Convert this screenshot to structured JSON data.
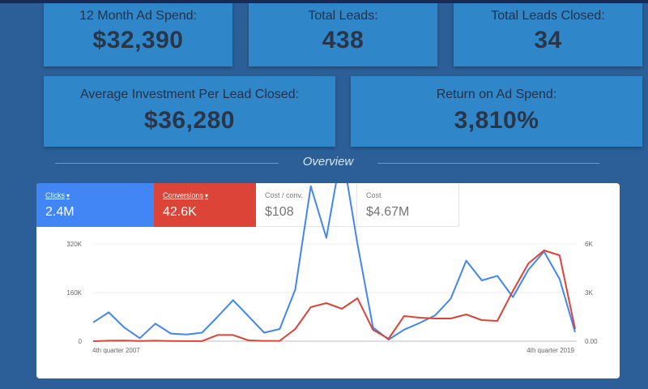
{
  "kpis": {
    "spend": {
      "label": "12 Month Ad Spend:",
      "value": "$32,390"
    },
    "leads": {
      "label": "Total Leads:",
      "value": "438"
    },
    "closed": {
      "label": "Total Leads Closed:",
      "value": "34"
    },
    "avg": {
      "label": "Average Investment Per Lead Closed:",
      "value": "$36,280"
    },
    "roas": {
      "label": "Return on Ad Spend:",
      "value": "3,810%"
    }
  },
  "overview_label": "Overview",
  "tabs": [
    {
      "label": "Clicks",
      "value": "2.4M",
      "color": "#4285f4",
      "dropdown": true
    },
    {
      "label": "Conversions",
      "value": "42.6K",
      "color": "#db4437",
      "dropdown": true
    },
    {
      "label": "Cost / conv.",
      "value": "$108"
    },
    {
      "label": "Cost",
      "value": "$4.67M"
    }
  ],
  "caret_glyph": "▾",
  "chart_data": {
    "type": "line",
    "x_labels": [
      "4th quarter 2007",
      "4th quarter 2019"
    ],
    "left_axis": {
      "ticks": [
        "320K",
        "160K",
        "0"
      ],
      "ylim": [
        0,
        320000
      ]
    },
    "right_axis": {
      "ticks": [
        "6K",
        "3K",
        "0.00"
      ],
      "ylim": [
        0,
        6000
      ]
    },
    "grid": true,
    "series": [
      {
        "name": "Clicks",
        "axis": "left",
        "color": "#4285f4",
        "values": [
          62000,
          95000,
          45000,
          10000,
          58000,
          25000,
          22000,
          28000,
          80000,
          135000,
          82000,
          28000,
          40000,
          170000,
          510000,
          340000,
          630000,
          320000,
          45000,
          5000,
          38000,
          60000,
          85000,
          140000,
          265000,
          200000,
          215000,
          145000,
          235000,
          295000,
          205000,
          30000
        ]
      },
      {
        "name": "Conversions",
        "axis": "right",
        "color": "#db4437",
        "values": [
          0,
          30,
          40,
          10,
          30,
          10,
          5,
          5,
          380,
          380,
          50,
          20,
          20,
          750,
          2100,
          2350,
          2000,
          2650,
          700,
          150,
          1550,
          1450,
          1400,
          1400,
          1650,
          1300,
          1250,
          3100,
          4800,
          5600,
          5300,
          750
        ]
      }
    ]
  }
}
